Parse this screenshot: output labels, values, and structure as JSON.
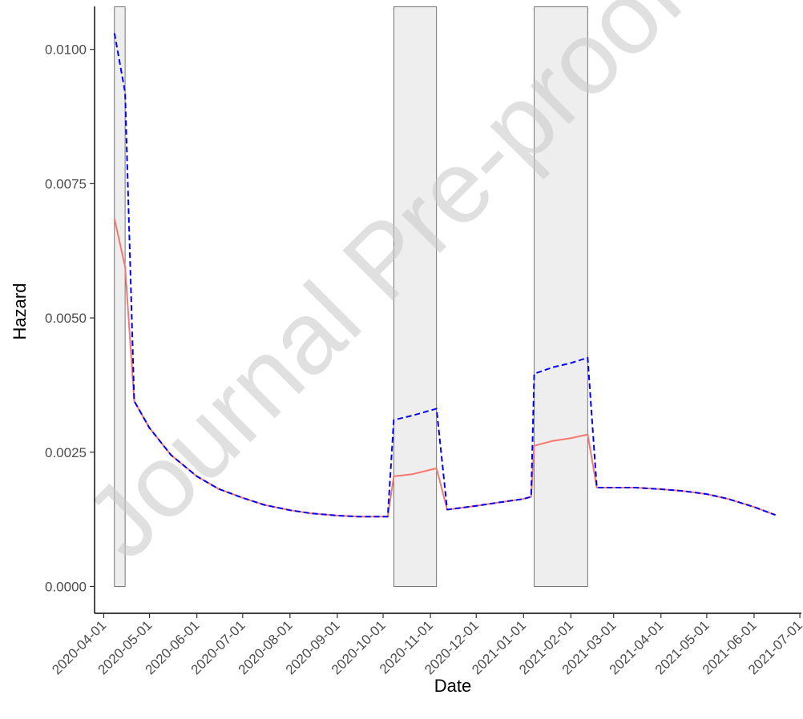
{
  "watermark": "Journal Pre-proof",
  "chart_data": {
    "type": "line",
    "xlabel": "Date",
    "ylabel": "Hazard",
    "x_ticks": [
      "2020-04-01",
      "2020-05-01",
      "2020-06-01",
      "2020-07-01",
      "2020-08-01",
      "2020-09-01",
      "2020-10-01",
      "2020-11-01",
      "2020-12-01",
      "2021-01-01",
      "2021-02-01",
      "2021-03-01",
      "2021-04-01",
      "2021-05-01",
      "2021-06-01",
      "2021-07-01"
    ],
    "y_ticks": [
      "0.0000",
      "0.0025",
      "0.0050",
      "0.0075",
      "0.0100"
    ],
    "xlim": [
      "2020-03-26",
      "2021-07-02"
    ],
    "ylim": [
      -0.0005,
      0.0108
    ],
    "grid": false,
    "legend": "none",
    "shaded_periods": [
      {
        "start": "2020-04-08",
        "end": "2020-04-15"
      },
      {
        "start": "2020-10-08",
        "end": "2020-11-05"
      },
      {
        "start": "2021-01-08",
        "end": "2021-02-12"
      }
    ],
    "colors": {
      "series_1": "#F8766D",
      "series_2": "#0000FF",
      "shade_fill": "#EEEEEE",
      "shade_stroke": "#555555"
    },
    "series": [
      {
        "line_style": "solid",
        "x": [
          "2020-04-08",
          "2020-04-15",
          "2020-04-21",
          "2020-05-01",
          "2020-05-15",
          "2020-06-01",
          "2020-06-15",
          "2020-07-01",
          "2020-07-15",
          "2020-08-01",
          "2020-08-15",
          "2020-09-01",
          "2020-09-15",
          "2020-10-01",
          "2020-10-04",
          "2020-10-08",
          "2020-10-20",
          "2020-11-05",
          "2020-11-12",
          "2020-12-01",
          "2020-12-15",
          "2021-01-01",
          "2021-01-06",
          "2021-01-08",
          "2021-01-20",
          "2021-02-01",
          "2021-02-12",
          "2021-02-18",
          "2021-03-01",
          "2021-03-15",
          "2021-04-01",
          "2021-04-15",
          "2021-05-01",
          "2021-05-15",
          "2021-06-01",
          "2021-06-15"
        ],
        "y": [
          0.00685,
          0.00595,
          0.00345,
          0.00295,
          0.00245,
          0.00205,
          0.00182,
          0.00165,
          0.00152,
          0.00142,
          0.00136,
          0.00132,
          0.0013,
          0.0013,
          0.0013,
          0.00205,
          0.00209,
          0.0022,
          0.00143,
          0.0015,
          0.00156,
          0.00163,
          0.00167,
          0.00262,
          0.00271,
          0.00276,
          0.00283,
          0.00184,
          0.00184,
          0.00184,
          0.00181,
          0.00178,
          0.00172,
          0.00163,
          0.00148,
          0.00133
        ]
      },
      {
        "line_style": "dashed",
        "x": [
          "2020-04-08",
          "2020-04-15",
          "2020-04-21",
          "2020-05-01",
          "2020-05-15",
          "2020-06-01",
          "2020-06-15",
          "2020-07-01",
          "2020-07-15",
          "2020-08-01",
          "2020-08-15",
          "2020-09-01",
          "2020-09-15",
          "2020-10-01",
          "2020-10-04",
          "2020-10-08",
          "2020-10-20",
          "2020-11-05",
          "2020-11-12",
          "2020-12-01",
          "2020-12-15",
          "2021-01-01",
          "2021-01-06",
          "2021-01-08",
          "2021-01-20",
          "2021-02-01",
          "2021-02-12",
          "2021-02-18",
          "2021-03-01",
          "2021-03-15",
          "2021-04-01",
          "2021-04-15",
          "2021-05-01",
          "2021-05-15",
          "2021-06-01",
          "2021-06-15"
        ],
        "y": [
          0.0103,
          0.0092,
          0.00345,
          0.00295,
          0.00245,
          0.00205,
          0.00182,
          0.00165,
          0.00152,
          0.00142,
          0.00136,
          0.00132,
          0.0013,
          0.0013,
          0.0013,
          0.0031,
          0.00318,
          0.00331,
          0.00143,
          0.0015,
          0.00156,
          0.00163,
          0.00167,
          0.00396,
          0.00408,
          0.00416,
          0.00426,
          0.00184,
          0.00184,
          0.00184,
          0.00181,
          0.00178,
          0.00172,
          0.00163,
          0.00148,
          0.00133
        ]
      }
    ]
  }
}
